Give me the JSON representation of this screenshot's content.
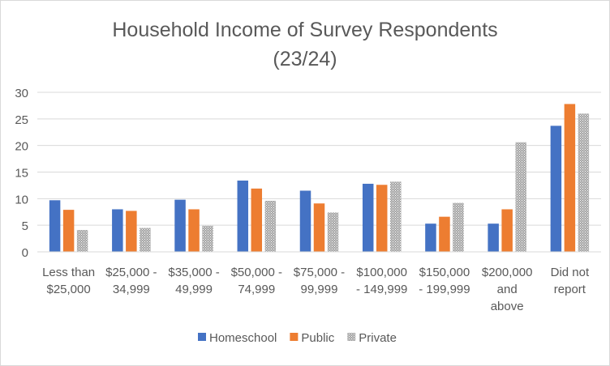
{
  "chart_data": {
    "type": "bar",
    "title": "Household Income of Survey Respondents",
    "subtitle": "(23/24)",
    "xlabel": "",
    "ylabel": "",
    "ylim": [
      0,
      30
    ],
    "yticks": [
      0,
      5,
      10,
      15,
      20,
      25,
      30
    ],
    "grid": true,
    "legend_position": "bottom",
    "categories": [
      [
        "Less than",
        "$25,000"
      ],
      [
        "$25,000 -",
        "34,999"
      ],
      [
        "$35,000 -",
        "49,999"
      ],
      [
        "$50,000 -",
        "74,999"
      ],
      [
        "$75,000 -",
        "99,999"
      ],
      [
        "$100,000",
        "- 149,999"
      ],
      [
        "$150,000",
        "- 199,999"
      ],
      [
        "$200,000",
        "and",
        "above"
      ],
      [
        "Did not",
        "report"
      ]
    ],
    "series": [
      {
        "name": "Homeschool",
        "color": "#4472C4",
        "pattern": "solid",
        "values": [
          9.7,
          8.0,
          9.8,
          13.4,
          11.5,
          12.8,
          5.3,
          5.3,
          23.7
        ]
      },
      {
        "name": "Public",
        "color": "#ED7D31",
        "pattern": "solid",
        "values": [
          7.9,
          7.7,
          8.0,
          11.9,
          9.1,
          12.6,
          6.6,
          8.0,
          27.8
        ]
      },
      {
        "name": "Private",
        "color": "#A5A5A5",
        "pattern": "dotted",
        "values": [
          4.1,
          4.5,
          4.9,
          9.6,
          7.4,
          13.2,
          9.2,
          20.6,
          26.0
        ]
      }
    ]
  }
}
